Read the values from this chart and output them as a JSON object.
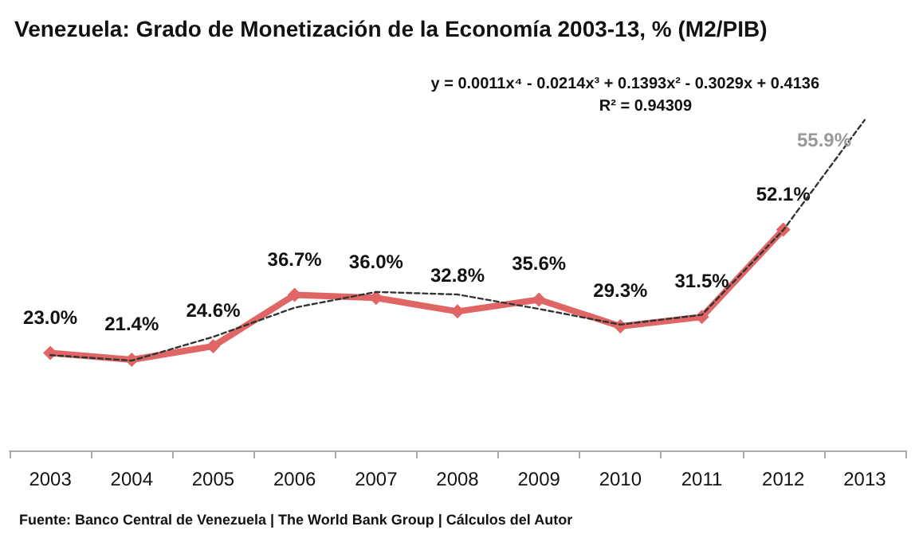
{
  "chart_data": {
    "type": "line",
    "title": "Venezuela: Grado de Monetización de la Economía 2003-13, % (M2/PIB)",
    "categories": [
      "2003",
      "2004",
      "2005",
      "2006",
      "2007",
      "2008",
      "2009",
      "2010",
      "2011",
      "2012",
      "2013"
    ],
    "series": [
      {
        "color": "#e06666",
        "marker": "diamond",
        "line_style": "solid",
        "values": [
          23.0,
          21.4,
          24.6,
          36.7,
          36.0,
          32.8,
          35.6,
          29.3,
          31.5,
          52.1,
          null
        ],
        "value_labels": [
          "23.0%",
          "21.4%",
          "24.6%",
          "36.7%",
          "36.0%",
          "32.8%",
          "35.6%",
          "29.3%",
          "31.5%",
          "52.1%",
          null
        ]
      },
      {
        "color": "#333333",
        "marker": "none",
        "line_style": "dashed",
        "values": [
          22.5,
          21.2,
          26.8,
          33.7,
          37.4,
          36.8,
          33.4,
          29.7,
          32.0,
          52.0,
          78.0
        ]
      }
    ],
    "tick_labels": "x",
    "annotations": [
      "y = 0.0011x⁴ - 0.0214x³ + 0.1393x² - 0.3029x + 0.4136",
      "R² = 0.94309",
      "55.9%",
      "Fuente: Banco Central de Venezuela | The World Bank Group | Cálculos del Autor"
    ]
  }
}
